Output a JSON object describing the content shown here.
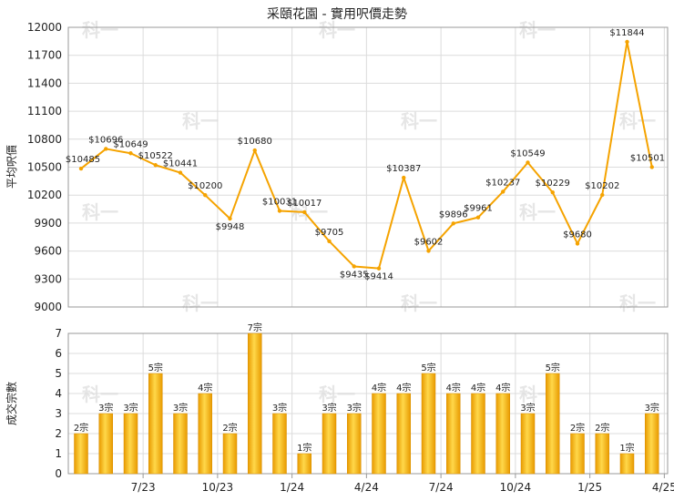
{
  "chart_data": [
    {
      "type": "line",
      "title": "采頤花園 - 實用呎價走勢",
      "ylabel": "平均呎價",
      "ylim": [
        9000,
        12000
      ],
      "yticks": [
        9000,
        9300,
        9600,
        9900,
        10200,
        10500,
        10800,
        11100,
        11400,
        11700,
        12000
      ],
      "xticks": [
        "7/23",
        "10/23",
        "1/24",
        "4/24",
        "7/24",
        "10/24",
        "1/25",
        "4/25"
      ],
      "grid": true,
      "color": "#f5a300",
      "values": [
        10485,
        10696,
        10649,
        10522,
        10441,
        10200,
        9948,
        10680,
        10031,
        10017,
        9705,
        9435,
        9414,
        10387,
        9602,
        9896,
        9961,
        10237,
        10549,
        10229,
        9680,
        10202,
        11844,
        10501
      ],
      "labels": [
        "$10485",
        "$10696",
        "$10649",
        "$10522",
        "$10441",
        "$10200",
        "$9948",
        "$10680",
        "$10031",
        "$10017",
        "$9705",
        "$9435",
        "$9414",
        "$10387",
        "$9602",
        "$9896",
        "$9961",
        "$10237",
        "$10549",
        "$10229",
        "$9680",
        "$10202",
        "$11844",
        "$10501"
      ]
    },
    {
      "type": "bar",
      "ylabel": "成交宗數",
      "ylim": [
        0,
        7
      ],
      "yticks": [
        0,
        1,
        2,
        3,
        4,
        5,
        6,
        7
      ],
      "xticks": [
        "7/23",
        "10/23",
        "1/24",
        "4/24",
        "7/24",
        "10/24",
        "1/25",
        "4/25"
      ],
      "grid": true,
      "color": "#f5b400",
      "values": [
        2,
        3,
        3,
        5,
        3,
        4,
        2,
        7,
        3,
        1,
        3,
        3,
        4,
        4,
        5,
        4,
        4,
        4,
        3,
        5,
        2,
        2,
        1,
        3
      ],
      "labels": [
        "2宗",
        "3宗",
        "3宗",
        "5宗",
        "3宗",
        "4宗",
        "2宗",
        "7宗",
        "3宗",
        "1宗",
        "3宗",
        "3宗",
        "4宗",
        "4宗",
        "5宗",
        "4宗",
        "4宗",
        "4宗",
        "3宗",
        "5宗",
        "2宗",
        "2宗",
        "1宗",
        "3宗"
      ]
    }
  ],
  "watermark": "科一"
}
